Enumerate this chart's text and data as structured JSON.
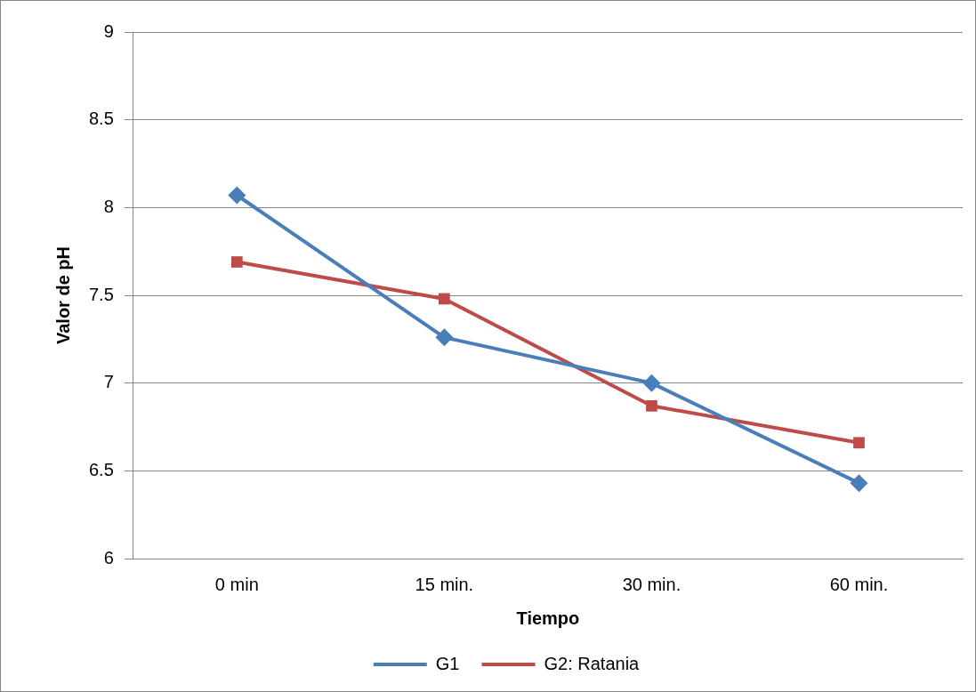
{
  "chart_data": {
    "type": "line",
    "xlabel": "Tiempo",
    "ylabel": "Valor de pH",
    "categories": [
      "0 min",
      "15 min.",
      "30 min.",
      "60 min."
    ],
    "series": [
      {
        "name": "G1",
        "color": "#4a7ebb",
        "marker": "diamond",
        "values": [
          8.07,
          7.26,
          7.0,
          6.43
        ]
      },
      {
        "name": "G2: Ratania",
        "color": "#be4b48",
        "marker": "square",
        "values": [
          7.69,
          7.48,
          6.87,
          6.66
        ]
      }
    ],
    "ylim": [
      6,
      9
    ],
    "yticks": [
      6,
      6.5,
      7,
      7.5,
      8,
      8.5,
      9
    ],
    "grid": "y",
    "legend": "bottom"
  }
}
